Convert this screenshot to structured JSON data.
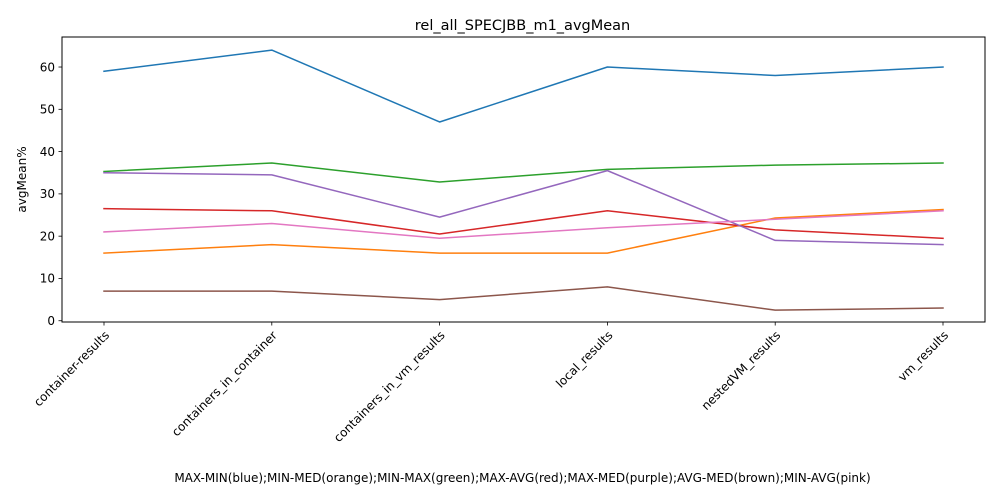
{
  "chart_data": {
    "type": "line",
    "title": "rel_all_SPECJBB_m1_avgMean",
    "xlabel": "MAX-MIN(blue);MIN-MED(orange);MIN-MAX(green);MAX-AVG(red);MAX-MED(purple);AVG-MED(brown);MIN-AVG(pink)",
    "ylabel": "avgMean%",
    "categories": [
      "container-results",
      "containers_in_container",
      "containers_in_vm_results",
      "local_results",
      "nestedVM_results",
      "vm_results"
    ],
    "ylim": [
      -0.3,
      67.1
    ],
    "yticks": [
      0,
      10,
      20,
      30,
      40,
      50,
      60
    ],
    "grid": false,
    "series": [
      {
        "color": "#1f77b4",
        "values": [
          59,
          64,
          47,
          60,
          58,
          60
        ]
      },
      {
        "color": "#ff7f0e",
        "values": [
          16,
          18,
          16,
          16,
          24.3,
          26.3
        ]
      },
      {
        "color": "#2ca02c",
        "values": [
          35.3,
          37.3,
          32.8,
          35.8,
          36.8,
          37.3
        ]
      },
      {
        "color": "#d62728",
        "values": [
          26.5,
          26,
          20.5,
          26,
          21.5,
          19.5
        ]
      },
      {
        "color": "#9467bd",
        "values": [
          35,
          34.5,
          24.5,
          35.5,
          19,
          18
        ]
      },
      {
        "color": "#8c564b",
        "values": [
          7,
          7,
          5,
          8,
          2.5,
          3
        ]
      },
      {
        "color": "#e377c2",
        "values": [
          21,
          23,
          19.5,
          22,
          24,
          26
        ]
      }
    ]
  }
}
